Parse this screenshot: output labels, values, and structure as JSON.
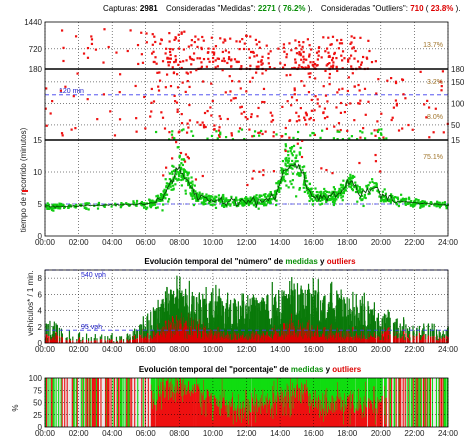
{
  "header": {
    "captures_label": "Capturas:",
    "captures_value": "2981",
    "measured_label": "Consideradas \"Medidas\":",
    "measured_value": "2271",
    "measured_pct": "76.2%",
    "outliers_label": "Consideradas \"Outliers\":",
    "outliers_value": "710",
    "outliers_pct": "23.8%",
    "open_paren": "(",
    "close_paren": ").",
    "measured_color": "#0a8f0a",
    "outliers_color": "#dd0000"
  },
  "chart_data": [
    {
      "id": "travel-time",
      "type": "scatter",
      "ylabel": "tiempo de recorrido (minutos)",
      "x_range": [
        0,
        24
      ],
      "x_ticks": [
        "00:00",
        "02:00",
        "04:00",
        "06:00",
        "08:00",
        "10:00",
        "12:00",
        "14:00",
        "16:00",
        "18:00",
        "20:00",
        "22:00",
        "24:00"
      ],
      "grid": true,
      "bands": [
        {
          "name": "top",
          "y_ticks": [
            "1440",
            "720",
            "180"
          ],
          "tick_values": [
            1440,
            720,
            180
          ],
          "ylim": [
            180,
            1440
          ],
          "axis_side": "left",
          "annotation": "13.7%"
        },
        {
          "name": "middle",
          "y_ticks": [
            "180",
            "150",
            "100",
            "50",
            "15"
          ],
          "tick_values": [
            180,
            150,
            100,
            50,
            15
          ],
          "ylim": [
            15,
            180
          ],
          "axis_side": "right",
          "annotation_top": "3.2%",
          "annotation_bottom": "8.0%",
          "reference_line": {
            "value": 120,
            "label": "120 min"
          }
        },
        {
          "name": "bottom",
          "y_ticks": [
            "15",
            "10",
            "5",
            "0"
          ],
          "tick_values": [
            15,
            10,
            5,
            0
          ],
          "ylim": [
            0,
            15
          ],
          "axis_side": "left",
          "annotation": "75.1%"
        }
      ],
      "series": [
        {
          "name": "medidas",
          "color": "#11cc11"
        },
        {
          "name": "outliers",
          "color": "#ee1111"
        }
      ],
      "median_profile": [
        [
          0,
          4.6
        ],
        [
          1,
          4.6
        ],
        [
          2,
          4.7
        ],
        [
          3,
          4.8
        ],
        [
          4,
          4.9
        ],
        [
          5,
          4.9
        ],
        [
          6,
          5.0
        ],
        [
          6.5,
          5.2
        ],
        [
          7,
          6.0
        ],
        [
          7.5,
          8.5
        ],
        [
          7.8,
          10.0
        ],
        [
          8,
          10.5
        ],
        [
          8.3,
          9.5
        ],
        [
          8.7,
          7.5
        ],
        [
          9,
          6.2
        ],
        [
          10,
          5.6
        ],
        [
          11,
          5.4
        ],
        [
          12,
          5.4
        ],
        [
          13,
          5.6
        ],
        [
          13.7,
          6.0
        ],
        [
          14,
          8.0
        ],
        [
          14.3,
          10.5
        ],
        [
          14.6,
          11.0
        ],
        [
          15,
          11.0
        ],
        [
          15.3,
          10.2
        ],
        [
          15.6,
          7.5
        ],
        [
          16,
          6.2
        ],
        [
          17,
          6.0
        ],
        [
          17.5,
          6.5
        ],
        [
          18,
          8.0
        ],
        [
          18.3,
          8.5
        ],
        [
          18.6,
          7.0
        ],
        [
          19,
          6.4
        ],
        [
          19.4,
          7.5
        ],
        [
          19.7,
          8.0
        ],
        [
          20,
          6.0
        ],
        [
          21,
          5.5
        ],
        [
          22,
          5.2
        ],
        [
          23,
          5.0
        ],
        [
          24,
          4.8
        ]
      ],
      "activity_profile": [
        [
          0,
          0.35
        ],
        [
          1,
          0.3
        ],
        [
          2,
          0.2
        ],
        [
          3,
          0.15
        ],
        [
          4,
          0.15
        ],
        [
          5,
          0.2
        ],
        [
          6,
          0.5
        ],
        [
          7,
          0.9
        ],
        [
          8,
          1.0
        ],
        [
          9,
          0.9
        ],
        [
          10,
          0.85
        ],
        [
          11,
          0.8
        ],
        [
          12,
          0.8
        ],
        [
          13,
          0.85
        ],
        [
          14,
          0.95
        ],
        [
          15,
          1.0
        ],
        [
          16,
          0.95
        ],
        [
          17,
          0.9
        ],
        [
          18,
          0.85
        ],
        [
          19,
          0.75
        ],
        [
          20,
          0.55
        ],
        [
          21,
          0.45
        ],
        [
          22,
          0.4
        ],
        [
          23,
          0.35
        ],
        [
          24,
          0.3
        ]
      ]
    },
    {
      "id": "count",
      "type": "bar",
      "title_parts": [
        {
          "text": "Evolución temporal del \"número\" de ",
          "color": "#000000"
        },
        {
          "text": "medidas",
          "color": "#0a8f0a"
        },
        {
          "text": " y ",
          "color": "#000000"
        },
        {
          "text": "outliers",
          "color": "#dd0000"
        }
      ],
      "ylabel": "vehículos* / 1 min.",
      "x_range": [
        0,
        24
      ],
      "x_ticks": [
        "00:00",
        "02:00",
        "04:00",
        "06:00",
        "08:00",
        "10:00",
        "12:00",
        "14:00",
        "16:00",
        "18:00",
        "20:00",
        "22:00",
        "24:00"
      ],
      "y_ticks": [
        "8",
        "6",
        "4",
        "2",
        "0"
      ],
      "tick_values": [
        8,
        6,
        4,
        2,
        0
      ],
      "ylim": [
        0,
        9
      ],
      "reference_lines": [
        {
          "value": 9.0,
          "label": "540 vph"
        },
        {
          "value": 1.58,
          "label": "95 vph"
        }
      ],
      "series": [
        {
          "name": "medidas",
          "color": "#0a7a0a"
        },
        {
          "name": "outliers",
          "color": "#dd0000"
        }
      ]
    },
    {
      "id": "percentage",
      "type": "area",
      "title_parts": [
        {
          "text": "Evolución temporal del \"porcentaje\" de ",
          "color": "#000000"
        },
        {
          "text": "medidas",
          "color": "#0a8f0a"
        },
        {
          "text": " y ",
          "color": "#000000"
        },
        {
          "text": "outliers",
          "color": "#dd0000"
        }
      ],
      "ylabel": "%",
      "x_range": [
        0,
        24
      ],
      "x_ticks": [
        "00:00",
        "02:00",
        "04:00",
        "06:00",
        "08:00",
        "10:00",
        "12:00",
        "14:00",
        "16:00",
        "18:00",
        "20:00",
        "22:00",
        "24:00"
      ],
      "y_ticks": [
        "100",
        "75",
        "50",
        "25",
        "0"
      ],
      "tick_values": [
        100,
        75,
        50,
        25,
        0
      ],
      "ylim": [
        0,
        100
      ],
      "series": [
        {
          "name": "medidas",
          "color": "#11dd11"
        },
        {
          "name": "outliers",
          "color": "#ee1111"
        }
      ],
      "outlier_share_profile": [
        [
          0,
          0.5
        ],
        [
          5,
          0.5
        ],
        [
          6,
          0.45
        ],
        [
          7,
          0.7
        ],
        [
          8,
          0.85
        ],
        [
          9,
          0.75
        ],
        [
          10,
          0.55
        ],
        [
          11,
          0.45
        ],
        [
          12,
          0.42
        ],
        [
          13,
          0.45
        ],
        [
          14,
          0.6
        ],
        [
          15,
          0.75
        ],
        [
          16,
          0.55
        ],
        [
          17,
          0.45
        ],
        [
          18,
          0.5
        ],
        [
          19,
          0.45
        ],
        [
          20,
          0.5
        ],
        [
          24,
          0.5
        ]
      ]
    }
  ]
}
